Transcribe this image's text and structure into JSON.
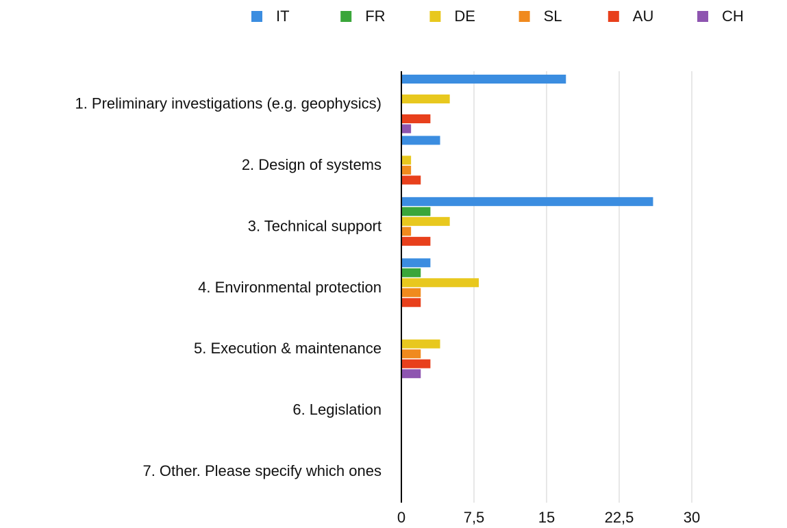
{
  "chart_data": {
    "type": "hbar",
    "categories": [
      "1. Preliminary investigations (e.g. geophysics)",
      "2. Design of systems",
      "3. Technical support",
      "4. Environmental protection",
      "5. Execution & maintenance",
      "6. Legislation",
      "7. Other. Please specify which ones"
    ],
    "series": [
      {
        "name": "IT",
        "color": "#3b8de0",
        "values": [
          17,
          4,
          26,
          3,
          0,
          0,
          0
        ]
      },
      {
        "name": "FR",
        "color": "#3aa63a",
        "values": [
          0,
          0,
          3,
          2,
          0,
          0,
          0
        ]
      },
      {
        "name": "DE",
        "color": "#e8c81e",
        "values": [
          5,
          1,
          5,
          8,
          4,
          0,
          0
        ]
      },
      {
        "name": "SL",
        "color": "#f08a1e",
        "values": [
          0,
          1,
          1,
          2,
          2,
          0,
          0
        ]
      },
      {
        "name": "AU",
        "color": "#e8401c",
        "values": [
          3,
          2,
          3,
          2,
          3,
          0,
          0
        ]
      },
      {
        "name": "CH",
        "color": "#8e55b0",
        "values": [
          1,
          0,
          0,
          0,
          2,
          0,
          0
        ]
      }
    ],
    "xlim": [
      0,
      30
    ],
    "xticks": [
      0,
      {
        "value": 7.5,
        "label": "7,5"
      },
      15,
      {
        "value": 22.5,
        "label": "22,5"
      },
      30
    ],
    "grid": true,
    "legend": "top"
  }
}
